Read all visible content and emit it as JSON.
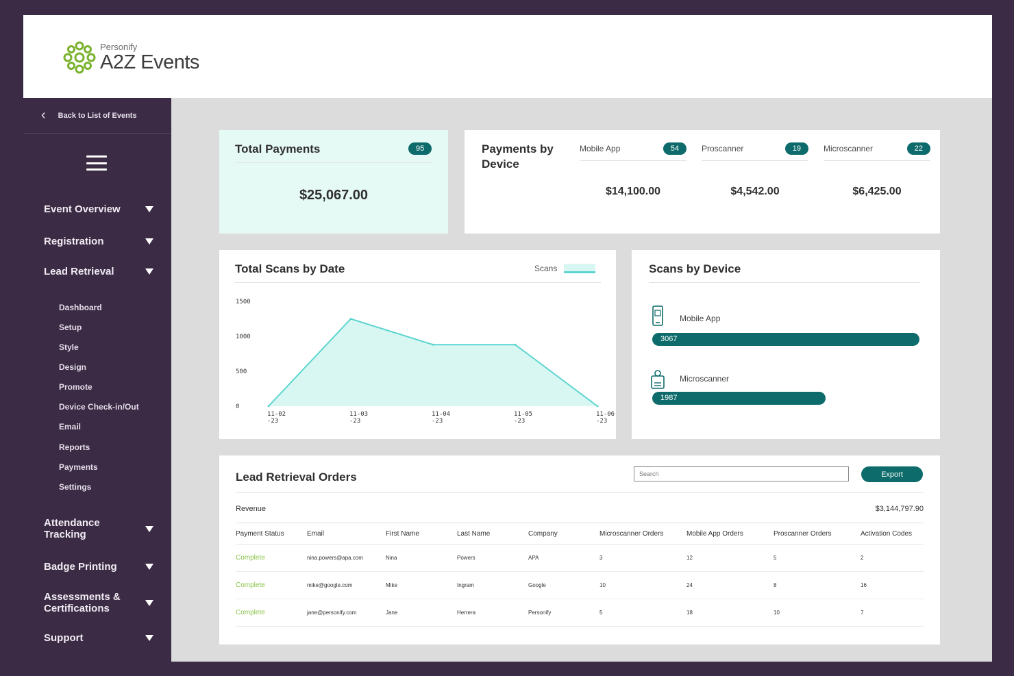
{
  "brand": {
    "small": "Personify",
    "big": "A2Z Events",
    "color": "#7ab22e"
  },
  "sidebar": {
    "back": "Back to List of Events",
    "sections": [
      {
        "label": "Event Overview"
      },
      {
        "label": "Registration"
      },
      {
        "label": "Lead Retrieval"
      }
    ],
    "lead_retrieval_items": [
      "Dashboard",
      "Setup",
      "Style",
      "Design",
      "Promote",
      "Device Check-in/Out",
      "Email",
      "Reports",
      "Payments",
      "Settings"
    ],
    "lower_sections": [
      {
        "line1": "Attendance",
        "line2": "Tracking"
      },
      {
        "line1": "Badge Printing",
        "line2": ""
      },
      {
        "line1": "Assessments &",
        "line2": "Certifications"
      },
      {
        "line1": "Support",
        "line2": ""
      }
    ]
  },
  "total_payments": {
    "title": "Total Payments",
    "count": "95",
    "amount": "$25,067.00"
  },
  "payments_by_device": {
    "title": "Payments by Device",
    "devices": [
      {
        "name": "Mobile App",
        "count": "54",
        "amount": "$14,100.00"
      },
      {
        "name": "Proscanner",
        "count": "19",
        "amount": "$4,542.00"
      },
      {
        "name": "Microscanner",
        "count": "22",
        "amount": "$6,425.00"
      }
    ]
  },
  "scans_by_date": {
    "title": "Total Scans by Date",
    "legend": "Scans",
    "colors": {
      "fill": "#d8f7f2",
      "stroke": "#5cd5cf"
    }
  },
  "chart_data": {
    "type": "area",
    "title": "Total Scans by Date",
    "categories": [
      "11-02-23",
      "11-03-23",
      "11-04-23",
      "11-05-23",
      "11-06-23"
    ],
    "category_labels": [
      [
        "11-02",
        "-23"
      ],
      [
        "11-03",
        "-23"
      ],
      [
        "11-04",
        "-23"
      ],
      [
        "11-05",
        "-23"
      ],
      [
        "11-06",
        "-23"
      ]
    ],
    "series": [
      {
        "name": "Scans",
        "values": [
          0,
          1250,
          880,
          880,
          0
        ]
      }
    ],
    "yticks": [
      0,
      500,
      1000,
      1500
    ],
    "ylim": [
      0,
      1500
    ],
    "grid": false,
    "legend": "top-right"
  },
  "scans_by_device": {
    "title": "Scans by Device",
    "max": 3067,
    "devices": [
      {
        "name": "Mobile App",
        "value": 3067,
        "label": "3067",
        "icon": "mobile-phone-icon"
      },
      {
        "name": "Microscanner",
        "value": 1987,
        "label": "1987",
        "icon": "scanner-badge-icon"
      }
    ]
  },
  "orders": {
    "title": "Lead Retrieval Orders",
    "search_placeholder": "Search",
    "export_label": "Export",
    "revenue_label": "Revenue",
    "revenue_value": "$3,144,797.90",
    "columns": [
      "Payment Status",
      "Email",
      "First Name",
      "Last Name",
      "Company",
      "Microscanner Orders",
      "Mobile App Orders",
      "Proscanner Orders",
      "Activation Codes"
    ],
    "rows": [
      [
        "Complete",
        "nina.powers@apa.com",
        "Nina",
        "Powers",
        "APA",
        "3",
        "12",
        "5",
        "2"
      ],
      [
        "Complete",
        "mike@google.com",
        "Mike",
        "Ingram",
        "Google",
        "10",
        "24",
        "8",
        "16"
      ],
      [
        "Complete",
        "jane@personify.com",
        "Jane",
        "Herrera",
        "Personify",
        "5",
        "18",
        "10",
        "7"
      ]
    ]
  }
}
